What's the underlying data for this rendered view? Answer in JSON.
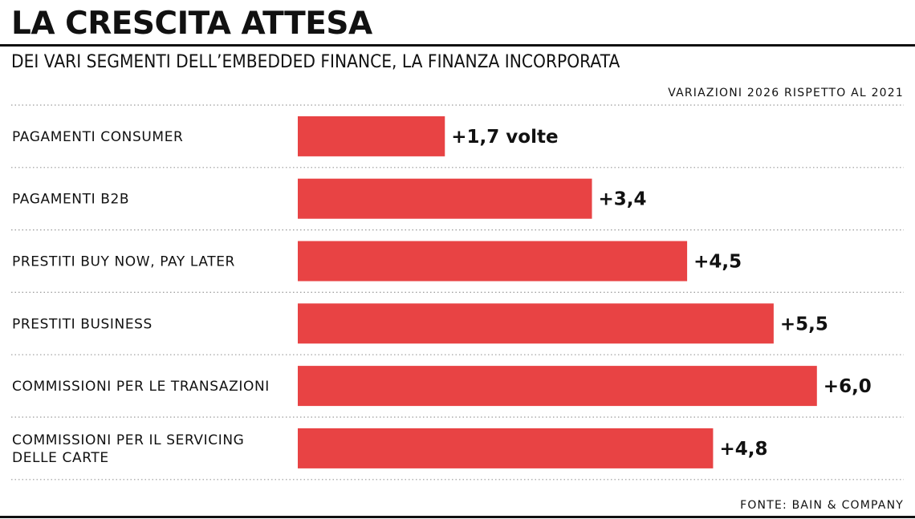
{
  "header": {
    "title": "LA CRESCITA ATTESA",
    "subtitle": "DEI VARI SEGMENTI DELL’EMBEDDED FINANCE, LA FINANZA INCORPORATA",
    "note": "VARIAZIONI 2026 RISPETTO AL 2021"
  },
  "footer": {
    "source": "FONTE: BAIN & COMPANY"
  },
  "colors": {
    "bar": "#e84344",
    "text": "#111111",
    "divider": "#9a9a9a"
  },
  "chart_data": {
    "type": "bar",
    "orientation": "horizontal",
    "categories": [
      [
        "PAGAMENTI CONSUMER"
      ],
      [
        "PAGAMENTI B2B"
      ],
      [
        "PRESTITI BUY NOW, PAY LATER"
      ],
      [
        "PRESTITI BUSINESS"
      ],
      [
        "COMMISSIONI PER LE TRANSAZIONI"
      ],
      [
        "COMMISSIONI PER IL SERVICING",
        "DELLE CARTE"
      ]
    ],
    "values": [
      1.7,
      3.4,
      4.5,
      5.5,
      6.0,
      4.8
    ],
    "value_labels": [
      "+1,7 volte",
      "+3,4",
      "+4,5",
      "+5,5",
      "+6,0",
      "+4,8"
    ],
    "grid": false,
    "legend": "none"
  }
}
